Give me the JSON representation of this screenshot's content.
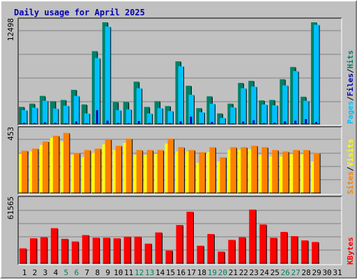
{
  "colors": {
    "background": "#c0c0c0",
    "plot_bg": "#c0c0c0",
    "title": "#0000b0",
    "axis_text": "#000000",
    "weekend_day": "#007f60",
    "pages": "#00c0ff",
    "files": "#00a0ff",
    "hits": "#008066",
    "visits": "#ffff00",
    "sites": "#ff8000",
    "kbytes": "#ff0000"
  },
  "chart_data": {
    "type": "bar",
    "title": "Daily usage for April 2025",
    "categories": [
      "1",
      "2",
      "3",
      "4",
      "5",
      "6",
      "7",
      "8",
      "9",
      "10",
      "11",
      "12",
      "13",
      "14",
      "15",
      "16",
      "17",
      "18",
      "19",
      "20",
      "21",
      "22",
      "23",
      "24",
      "25",
      "26",
      "27",
      "28",
      "29",
      "30",
      "31"
    ],
    "weekend_days": [
      "5",
      "6",
      "12",
      "13",
      "19",
      "20",
      "26",
      "27"
    ],
    "legend_placement": "right",
    "grid": true,
    "panels": [
      {
        "id": "top",
        "ymax": 12498,
        "ymax_label": "12498",
        "legend": [
          {
            "name": "Pages",
            "color": "#00c0ff"
          },
          {
            "sep": "/",
            "color": "#000000"
          },
          {
            "name": "Files",
            "color": "#0000b0"
          },
          {
            "sep": "/",
            "color": "#000000"
          },
          {
            "name": "Hits",
            "color": "#008066"
          }
        ],
        "series": [
          {
            "name": "Hits",
            "color": "#008066",
            "values": [
              2100,
              2500,
              3450,
              2800,
              2950,
              4200,
              2400,
              8950,
              12498,
              2700,
              2700,
              5200,
              2100,
              2800,
              2200,
              7700,
              4700,
              1950,
              3400,
              1300,
              2500,
              5050,
              5300,
              2900,
              2950,
              5500,
              7000,
              3350,
              12498,
              0,
              0
            ]
          },
          {
            "name": "Files",
            "color": "#00c0ff",
            "values": [
              1700,
              2000,
              2850,
              1900,
              2250,
              3450,
              1300,
              8100,
              11970,
              1700,
              1800,
              4400,
              1300,
              1950,
              1600,
              7100,
              3600,
              1450,
              2500,
              750,
              2050,
              4400,
              4600,
              2400,
              2300,
              4750,
              6500,
              2850,
              12200,
              0,
              0
            ]
          },
          {
            "name": "Pages",
            "color": "#0000b0",
            "values": [
              150,
              120,
              200,
              150,
              100,
              300,
              100,
              1700,
              400,
              150,
              100,
              350,
              120,
              100,
              120,
              300,
              900,
              100,
              250,
              50,
              80,
              300,
              450,
              120,
              150,
              300,
              400,
              600,
              250,
              0,
              0
            ]
          }
        ]
      },
      {
        "id": "middle",
        "ymax": 453,
        "ymax_label": "453",
        "legend": [
          {
            "name": "Sites",
            "color": "#ff8000"
          },
          {
            "sep": "/",
            "color": "#000000"
          },
          {
            "name": "Visits",
            "color": "#ffff00"
          }
        ],
        "series": [
          {
            "name": "Sites",
            "color": "#ff8000",
            "values": [
              295,
              310,
              360,
              400,
              420,
              280,
              300,
              310,
              375,
              330,
              380,
              300,
              300,
              300,
              380,
              320,
              300,
              285,
              320,
              250,
              320,
              320,
              330,
              320,
              300,
              290,
              300,
              300,
              280,
              0,
              0
            ]
          },
          {
            "name": "Visits",
            "color": "#ffff00",
            "values": [
              275,
              290,
              335,
              385,
              360,
              265,
              250,
              280,
              340,
              300,
              350,
              265,
              265,
              275,
              345,
              290,
              290,
              210,
              285,
              220,
              300,
              300,
              305,
              265,
              255,
              255,
              270,
              270,
              220,
              0,
              0
            ]
          }
        ]
      },
      {
        "id": "bottom",
        "ymax": 61565,
        "ymax_label": "61565",
        "legend": [
          {
            "name": "KBytes",
            "color": "#ff0000"
          }
        ],
        "series": [
          {
            "name": "KBytes",
            "color": "#ff0000",
            "values": [
              14000,
              23500,
              24500,
              33000,
              23000,
              20500,
              26500,
              24000,
              24000,
              23500,
              25000,
              25000,
              18500,
              29000,
              12000,
              36000,
              48500,
              16500,
              27500,
              11000,
              22000,
              24500,
              50500,
              36500,
              24000,
              29500,
              25500,
              21500,
              20000,
              0,
              0
            ]
          }
        ]
      }
    ]
  }
}
